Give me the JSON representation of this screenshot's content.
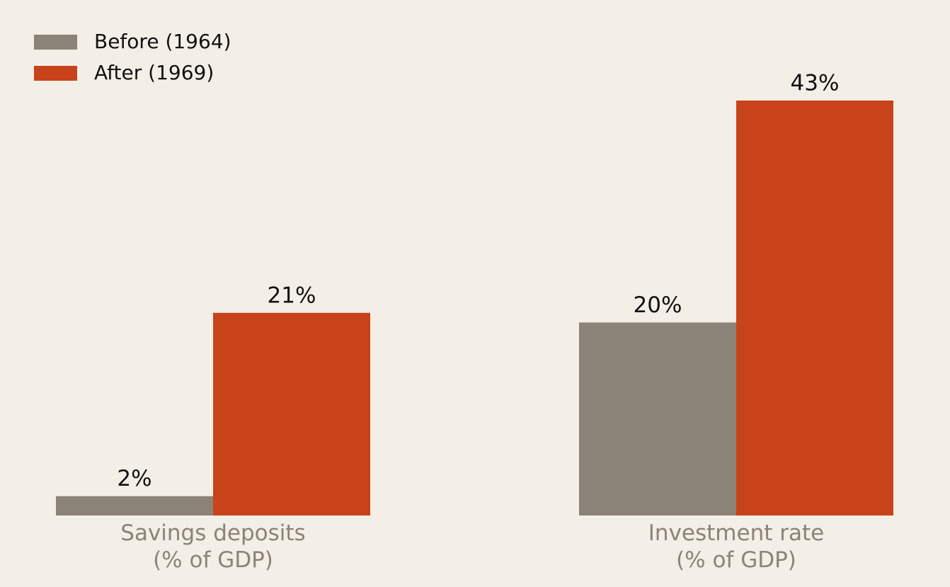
{
  "chart_data": {
    "type": "bar",
    "categories": [
      "Savings deposits\n(% of GDP)",
      "Investment rate\n(% of GDP)"
    ],
    "series": [
      {
        "name": "Before (1964)",
        "color": "#8b8378",
        "values": [
          2,
          20
        ],
        "value_labels": [
          "2%",
          "20%"
        ]
      },
      {
        "name": "After (1969)",
        "color": "#c8431a",
        "values": [
          21,
          43
        ],
        "value_labels": [
          "21%",
          "43%"
        ]
      }
    ],
    "legend": "upper left"
  }
}
